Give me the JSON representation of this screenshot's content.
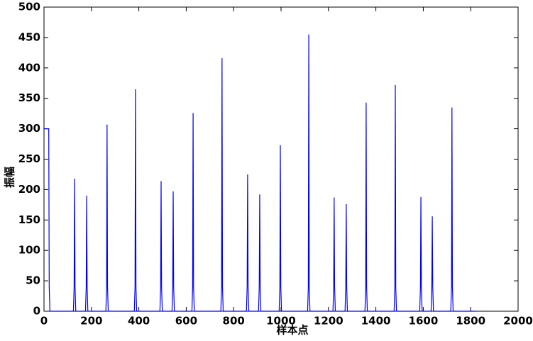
{
  "chart_data": {
    "type": "line",
    "xlabel": "样本点",
    "ylabel": "振幅",
    "color": "#0000ff",
    "x": [
      0,
      20,
      22,
      25,
      124,
      127,
      129,
      131,
      134,
      175,
      178,
      180,
      182,
      185,
      261,
      264,
      266,
      268,
      271,
      381,
      384,
      386,
      388,
      391,
      489,
      492,
      494,
      496,
      499,
      540,
      543,
      545,
      547,
      550,
      624,
      627,
      629,
      631,
      634,
      746,
      749,
      751,
      753,
      756,
      854,
      857,
      859,
      861,
      864,
      905,
      908,
      910,
      912,
      915,
      992,
      995,
      997,
      999,
      1002,
      1112,
      1115,
      1117,
      1119,
      1122,
      1219,
      1222,
      1224,
      1226,
      1229,
      1270,
      1273,
      1275,
      1277,
      1280,
      1354,
      1357,
      1359,
      1361,
      1364,
      1477,
      1480,
      1482,
      1484,
      1487,
      1585,
      1588,
      1590,
      1592,
      1595,
      1633,
      1636,
      1638,
      1640,
      1643,
      1716,
      1719,
      1721,
      1723,
      1726,
      1820
    ],
    "values": [
      300,
      300,
      40,
      0,
      0,
      40,
      218,
      40,
      0,
      0,
      40,
      190,
      40,
      0,
      0,
      40,
      307,
      40,
      0,
      0,
      40,
      365,
      40,
      0,
      0,
      40,
      214,
      40,
      0,
      0,
      40,
      197,
      40,
      0,
      0,
      40,
      326,
      40,
      0,
      0,
      40,
      416,
      40,
      0,
      0,
      40,
      225,
      40,
      0,
      0,
      40,
      192,
      40,
      0,
      0,
      40,
      273,
      40,
      0,
      0,
      40,
      455,
      40,
      0,
      0,
      40,
      187,
      40,
      0,
      0,
      40,
      176,
      40,
      0,
      0,
      40,
      343,
      40,
      0,
      0,
      40,
      372,
      40,
      0,
      0,
      40,
      188,
      40,
      0,
      0,
      40,
      156,
      40,
      0,
      0,
      40,
      335,
      40,
      0,
      0
    ],
    "xlim": [
      0,
      2000
    ],
    "xticks": [
      0,
      200,
      400,
      600,
      800,
      1000,
      1200,
      1400,
      1600,
      1800,
      2000
    ],
    "ylim": [
      0,
      500
    ],
    "yticks": [
      0,
      50,
      100,
      150,
      200,
      250,
      300,
      350,
      400,
      450,
      500
    ]
  }
}
